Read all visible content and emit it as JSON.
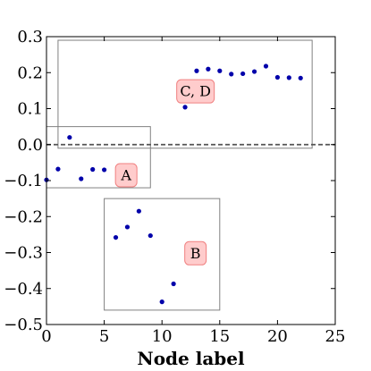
{
  "chart_data": {
    "type": "scatter",
    "xlabel": "Node label",
    "ylabel": "",
    "xlim": [
      0,
      25
    ],
    "ylim": [
      -0.5,
      0.3
    ],
    "x_ticks": [
      0,
      5,
      10,
      15,
      20,
      25
    ],
    "y_ticks": [
      0.3,
      0.2,
      0.1,
      0.0,
      -0.1,
      -0.2,
      -0.3,
      -0.4,
      -0.5
    ],
    "x_tick_labels": [
      "0",
      "5",
      "10",
      "15",
      "20",
      "25"
    ],
    "y_tick_labels": [
      "0.3",
      "0.2",
      "0.1",
      "0.0",
      "−0.1",
      "−0.2",
      "−0.3",
      "−0.4",
      "−0.5"
    ],
    "grid": false,
    "reference_line_y": 0.0,
    "point_color": "#0000aa",
    "series": [
      {
        "x": [
          0,
          1,
          2,
          3,
          4,
          5,
          6,
          7,
          8,
          9,
          10,
          11,
          12,
          13,
          14,
          15,
          16,
          17,
          18,
          19,
          20,
          21,
          22
        ],
        "y": [
          -0.098,
          -0.068,
          0.02,
          -0.095,
          -0.069,
          -0.07,
          -0.258,
          -0.229,
          -0.185,
          -0.253,
          -0.437,
          -0.387,
          0.104,
          0.205,
          0.21,
          0.205,
          0.196,
          0.197,
          0.203,
          0.218,
          0.187,
          0.186,
          0.185
        ]
      }
    ],
    "annotations": [
      {
        "label": "A",
        "box": {
          "x0": 0,
          "x1": 9,
          "y0": -0.12,
          "y1": 0.05
        },
        "label_at": [
          6.9,
          -0.085
        ]
      },
      {
        "label": "B",
        "box": {
          "x0": 5,
          "x1": 15,
          "y0": -0.46,
          "y1": -0.15
        },
        "label_at": [
          12.9,
          -0.302
        ]
      },
      {
        "label": "C, D",
        "box": {
          "x0": 1,
          "x1": 23,
          "y0": -0.01,
          "y1": 0.29
        },
        "label_at": [
          12.9,
          0.148
        ]
      }
    ],
    "label_box_fill": "#ffcccc",
    "label_box_stroke": "#f08080"
  }
}
